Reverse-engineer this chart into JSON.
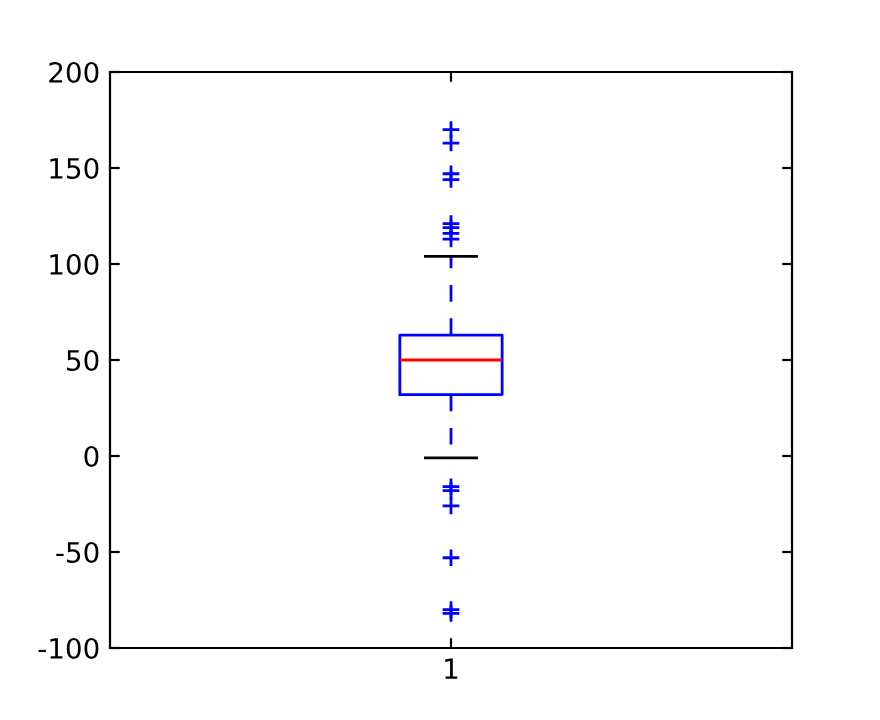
{
  "chart_data": {
    "type": "box",
    "categories": [
      "1"
    ],
    "boxes": [
      {
        "low": -1,
        "q1": 32,
        "median": 50,
        "q3": 63,
        "high": 104,
        "outliers": [
          170,
          163,
          147,
          144,
          121,
          119,
          116,
          113,
          -16,
          -18,
          -26,
          -53,
          -80,
          -82
        ]
      }
    ],
    "color": "#0000ff",
    "ylim": [
      -100,
      200
    ],
    "yticks": [
      -100,
      -50,
      0,
      50,
      100,
      150,
      200
    ],
    "grid": false,
    "legend": false
  }
}
